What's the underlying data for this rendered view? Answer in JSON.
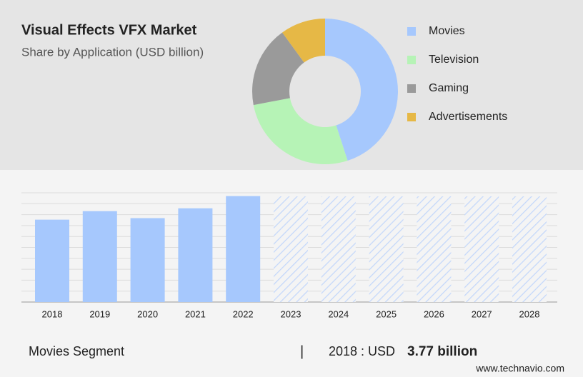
{
  "chart_data": [
    {
      "type": "donut",
      "title": "Visual Effects VFX Market",
      "subtitle": "Share by Application (USD billion)",
      "categories": [
        "Movies",
        "Television",
        "Gaming",
        "Advertisements"
      ],
      "values": [
        45,
        27,
        18,
        10
      ],
      "colors": [
        "#a6c8fd",
        "#b6f3b6",
        "#9a9a9a",
        "#e6b846"
      ]
    },
    {
      "type": "bar",
      "categories": [
        "2018",
        "2019",
        "2020",
        "2021",
        "2022",
        "2023",
        "2024",
        "2025",
        "2026",
        "2027",
        "2028"
      ],
      "values": [
        3.77,
        4.16,
        3.84,
        4.29,
        4.85,
        null,
        null,
        null,
        null,
        null,
        null
      ],
      "color": "#a6c8fd",
      "ylim": [
        0,
        5
      ],
      "grid": true
    }
  ],
  "footer": {
    "segment": "Movies Segment",
    "separator": "|",
    "text": "2018 : USD",
    "value": "3.77 billion"
  },
  "source": "www.technavio.com"
}
